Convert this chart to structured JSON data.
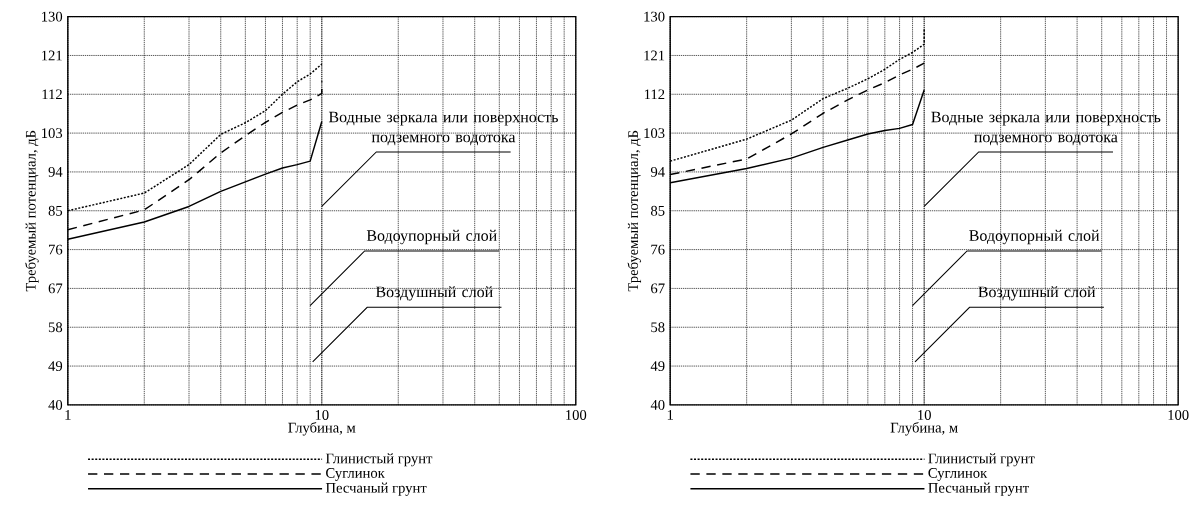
{
  "chart_data": [
    {
      "type": "line",
      "xlabel": "Глубина, м",
      "ylabel": "Требуемый потенциал, дБ",
      "log": "x",
      "grid": true,
      "legend": "bottom",
      "xlim": [
        1,
        100
      ],
      "xticks": [
        1,
        10,
        100
      ],
      "ylim": [
        40,
        130
      ],
      "yticks": [
        40,
        49,
        58,
        67,
        76,
        85,
        94,
        103,
        112,
        121,
        130
      ],
      "x": [
        1,
        2,
        3,
        4,
        5,
        6,
        7,
        8,
        9,
        10
      ],
      "series": [
        {
          "name": "Глинистый грунт",
          "color": "#000000",
          "line_style": "dotted",
          "values": [
            85,
            89.1,
            95.7,
            102.7,
            105.4,
            108.2,
            112,
            114.9,
            116.7,
            119
          ]
        },
        {
          "name": "Суглинок",
          "color": "#000000",
          "line_style": "dashed",
          "x": [
            1,
            2,
            3,
            4,
            5,
            6,
            7,
            8,
            9,
            10,
            10
          ],
          "values": [
            80.6,
            85.2,
            92.2,
            98.4,
            102.4,
            105.5,
            107.8,
            109.5,
            110.7,
            112.2,
            115
          ]
        },
        {
          "name": "Песчаный грунт",
          "color": "#000000",
          "line_style": "solid",
          "values": [
            78.4,
            82.4,
            86,
            89.5,
            91.7,
            93.5,
            94.9,
            95.7,
            96.5,
            105.7
          ]
        }
      ],
      "annotations": [
        "Водные зеркала или поверхность подземного водотока",
        "Водоупорный слой",
        "Воздушный слой"
      ]
    },
    {
      "type": "line",
      "xlabel": "Глубина, м",
      "ylabel": "Требуемый потенциал, дБ",
      "log": "x",
      "grid": true,
      "legend": "bottom",
      "xlim": [
        1,
        100
      ],
      "xticks": [
        1,
        10,
        100
      ],
      "ylim": [
        40,
        130
      ],
      "yticks": [
        40,
        49,
        58,
        67,
        76,
        85,
        94,
        103,
        112,
        121,
        130
      ],
      "x": [
        1,
        2,
        3,
        4,
        5,
        6,
        7,
        8,
        9,
        10
      ],
      "series": [
        {
          "name": "Глинистый грунт",
          "color": "#000000",
          "line_style": "dotted",
          "x": [
            1,
            2,
            3,
            4,
            5,
            6,
            7,
            8,
            9,
            10,
            10
          ],
          "values": [
            96.5,
            101.6,
            106,
            111,
            113.4,
            115.6,
            117.8,
            120.1,
            121.7,
            123.6,
            127
          ]
        },
        {
          "name": "Суглинок",
          "color": "#000000",
          "line_style": "dashed",
          "values": [
            93.4,
            97,
            102.8,
            107.6,
            110.7,
            113,
            114.7,
            116.5,
            117.8,
            119.2
          ]
        },
        {
          "name": "Песчаный грунт",
          "color": "#000000",
          "line_style": "solid",
          "values": [
            91.5,
            94.8,
            97.2,
            99.7,
            101.4,
            102.8,
            103.6,
            104.1,
            105,
            113
          ]
        }
      ],
      "annotations": [
        "Водные зеркала или поверхность подземного водотока",
        "Водоупорный слой",
        "Воздушный слой"
      ]
    }
  ]
}
